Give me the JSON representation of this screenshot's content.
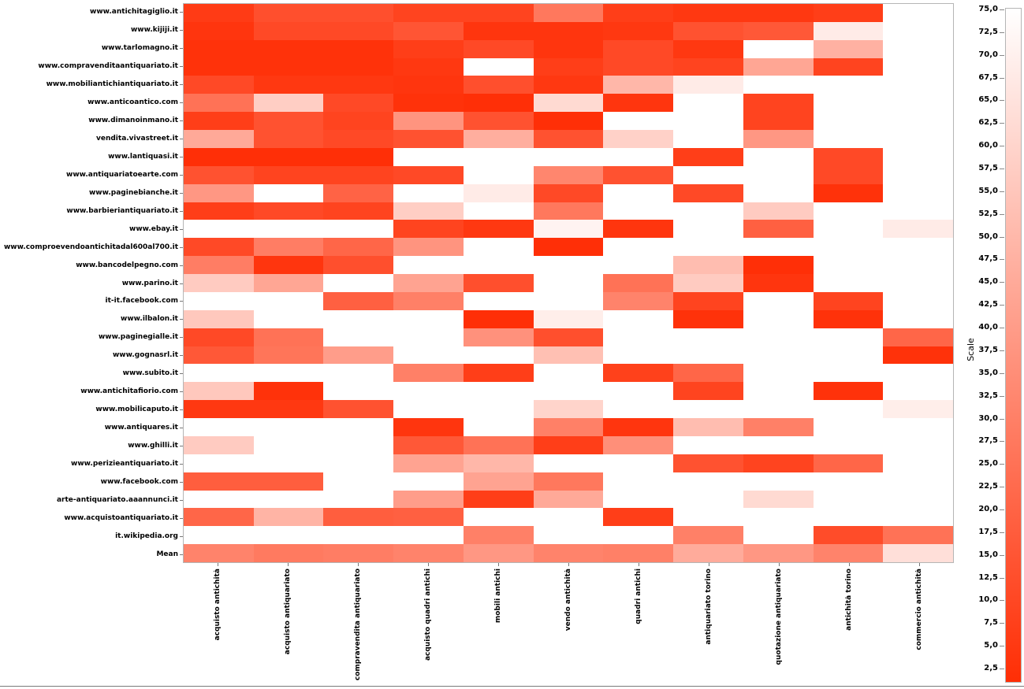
{
  "chart_data": {
    "type": "heatmap",
    "title": "",
    "rows": [
      "www.antichitagiglio.it",
      "www.kijiji.it",
      "www.tarlomagno.it",
      "www.compravenditaantiquariato.it",
      "www.mobiliantichiantiquariato.it",
      "www.anticoantico.com",
      "www.dimanoinmano.it",
      "vendita.vivastreet.it",
      "www.lantiquasi.it",
      "www.antiquariatoearte.com",
      "www.paginebianche.it",
      "www.barbieriantiquariato.it",
      "www.ebay.it",
      "www.comproevendoantichitadal600al700.it",
      "www.bancodelpegno.com",
      "www.parino.it",
      "it-it.facebook.com",
      "www.ilbalon.it",
      "www.paginegialle.it",
      "www.gognasrl.it",
      "www.subito.it",
      "www.antichitafiorio.com",
      "www.mobilicaputo.it",
      "www.antiquares.it",
      "www.ghilli.it",
      "www.perizieantiquariato.it",
      "www.facebook.com",
      "arte-antiquariato.aaannunci.it",
      "www.acquistoantiquariato.it",
      "it.wikipedia.org",
      "Mean"
    ],
    "columns": [
      "acquisto antichità",
      "acquisto antiquariato",
      "compravendita antiquariato",
      "acquisto quadri antichi",
      "mobili antichi",
      "vendo antichità",
      "quadri antichi",
      "antiquariato torino",
      "quotazione antiquariato",
      "antichità torino",
      "commercio antichità"
    ],
    "values": [
      [
        7,
        14,
        14,
        10,
        10,
        28,
        8,
        6,
        6,
        8,
        null
      ],
      [
        5,
        12,
        12,
        16,
        5,
        5,
        6,
        15,
        17,
        68,
        null
      ],
      [
        4,
        4,
        4,
        8,
        12,
        5,
        12,
        6,
        null,
        48,
        null
      ],
      [
        4,
        4,
        4,
        6,
        null,
        8,
        12,
        10,
        44,
        10,
        null
      ],
      [
        12,
        6,
        6,
        5,
        14,
        6,
        50,
        68,
        null,
        null,
        null
      ],
      [
        26,
        58,
        12,
        4,
        3,
        62,
        5,
        null,
        10,
        null,
        null
      ],
      [
        8,
        15,
        10,
        38,
        15,
        3,
        null,
        null,
        10,
        null,
        null
      ],
      [
        45,
        15,
        12,
        15,
        47,
        15,
        59,
        null,
        39,
        null,
        null
      ],
      [
        3,
        3,
        3,
        null,
        null,
        null,
        null,
        8,
        null,
        12,
        null
      ],
      [
        15,
        10,
        10,
        12,
        null,
        33,
        15,
        null,
        null,
        12,
        null
      ],
      [
        39,
        null,
        21,
        null,
        68,
        12,
        null,
        12,
        null,
        4,
        null
      ],
      [
        8,
        12,
        10,
        58,
        null,
        28,
        null,
        null,
        57,
        null,
        null
      ],
      [
        null,
        null,
        null,
        10,
        6,
        71,
        5,
        null,
        20,
        null,
        68
      ],
      [
        12,
        30,
        22,
        38,
        null,
        3,
        null,
        null,
        null,
        null,
        null
      ],
      [
        30,
        5,
        14,
        null,
        null,
        null,
        null,
        52,
        3,
        null,
        null
      ],
      [
        57,
        44,
        null,
        43,
        14,
        null,
        26,
        57,
        5,
        null,
        null
      ],
      [
        null,
        null,
        20,
        31,
        null,
        null,
        32,
        10,
        null,
        10,
        null
      ],
      [
        56,
        null,
        null,
        null,
        3,
        69,
        null,
        4,
        null,
        4,
        null
      ],
      [
        12,
        26,
        null,
        null,
        37,
        14,
        null,
        null,
        null,
        null,
        22
      ],
      [
        17,
        27,
        41,
        null,
        null,
        53,
        null,
        null,
        null,
        null,
        4
      ],
      [
        null,
        null,
        null,
        31,
        8,
        null,
        9,
        22,
        null,
        null,
        null
      ],
      [
        56,
        4,
        null,
        null,
        null,
        null,
        null,
        10,
        null,
        4,
        null
      ],
      [
        6,
        6,
        15,
        null,
        null,
        60,
        null,
        null,
        null,
        null,
        69
      ],
      [
        null,
        null,
        null,
        5,
        null,
        31,
        5,
        52,
        31,
        null,
        null
      ],
      [
        57,
        null,
        null,
        17,
        26,
        8,
        36,
        null,
        null,
        null,
        null
      ],
      [
        null,
        null,
        null,
        43,
        50,
        null,
        null,
        15,
        10,
        22,
        null
      ],
      [
        19,
        19,
        null,
        null,
        43,
        28,
        null,
        null,
        null,
        null,
        null
      ],
      [
        null,
        null,
        null,
        41,
        8,
        45,
        null,
        null,
        62,
        null,
        null
      ],
      [
        22,
        49,
        19,
        20,
        null,
        null,
        8,
        null,
        null,
        null,
        null
      ],
      [
        null,
        null,
        null,
        null,
        31,
        null,
        null,
        31,
        null,
        13,
        26
      ],
      [
        32,
        29,
        30,
        32,
        39,
        32,
        31,
        46,
        39,
        32,
        64
      ]
    ],
    "colorbar": {
      "label": "Scale",
      "min": 2.5,
      "max": 75.0,
      "tick_step": 2.5,
      "tick_labels": [
        "75,0",
        "72,5",
        "70,0",
        "67,5",
        "65,0",
        "62,5",
        "60,0",
        "57,5",
        "55,0",
        "52,5",
        "50,0",
        "47,5",
        "45,0",
        "42,5",
        "40,0",
        "37,5",
        "35,0",
        "32,5",
        "30,0",
        "27,5",
        "25,0",
        "22,5",
        "20,0",
        "17,5",
        "15,0",
        "12,5",
        "10,0",
        "7,5",
        "5,0",
        "2,5"
      ],
      "low_color": "#ff2e05",
      "high_color": "#ffffff",
      "missing_color": "#ffffff"
    },
    "legend_position": "right",
    "grid": false
  }
}
